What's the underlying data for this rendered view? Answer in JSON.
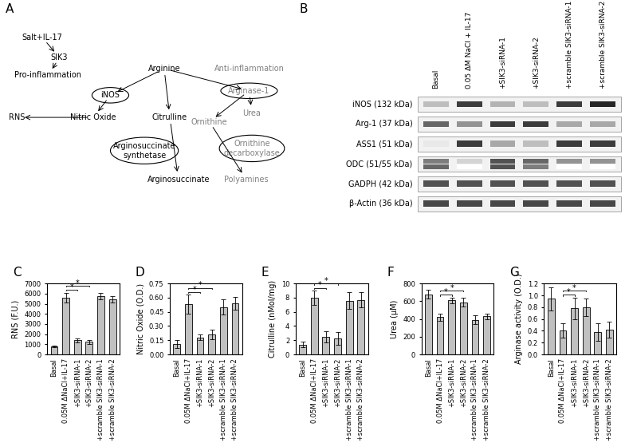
{
  "diagram": {
    "panel_label": "A",
    "nodes": [
      {
        "text": "Salt+IL-17",
        "color": "#000000",
        "shape": "text"
      },
      {
        "text": "SIK3",
        "color": "#000000",
        "shape": "text"
      },
      {
        "text": "Pro-inflammation",
        "color": "#000000",
        "shape": "text"
      },
      {
        "text": "iNOS",
        "color": "#000000",
        "shape": "ellipse"
      },
      {
        "text": "Arginine",
        "color": "#000000",
        "shape": "text"
      },
      {
        "text": "Anti-inflammation",
        "color": "#808080",
        "shape": "text"
      },
      {
        "text": "Arginase-1",
        "color": "#808080",
        "shape": "ellipse"
      },
      {
        "text": "Urea",
        "color": "#808080",
        "shape": "text"
      },
      {
        "text": "RNS",
        "color": "#000000",
        "shape": "text"
      },
      {
        "text": "Nitric Oxide",
        "color": "#000000",
        "shape": "text"
      },
      {
        "text": "Citrulline",
        "color": "#000000",
        "shape": "text"
      },
      {
        "text": "Ornithine",
        "color": "#808080",
        "shape": "text"
      },
      {
        "text": "Arginosuccinate\nsynthetase",
        "color": "#000000",
        "shape": "ellipse"
      },
      {
        "text": "Ornithine\ndecarboxylase",
        "color": "#808080",
        "shape": "ellipse"
      },
      {
        "text": "Arginosuccinate",
        "color": "#000000",
        "shape": "text"
      },
      {
        "text": "Polyamines",
        "color": "#808080",
        "shape": "text"
      }
    ]
  },
  "blot": {
    "panel_label": "B",
    "lanes": [
      "Basal",
      "0.05 ΔM NaCl + IL-17",
      "+SIK3-siRNA-1",
      "+SIK3-siRNA-2",
      "+scramble SIK3-siRNA-1",
      "+scramble SIK3-siRNA-2"
    ],
    "rows": [
      {
        "label": "iNOS (132 kDa)",
        "intensity": [
          0.3,
          0.9,
          0.35,
          0.3,
          0.9,
          1.0
        ]
      },
      {
        "label": "Arg-1 (37 kDa)",
        "intensity": [
          0.7,
          0.5,
          0.9,
          0.9,
          0.4,
          0.4
        ]
      },
      {
        "label": "ASS1 (51 kDa)",
        "intensity": [
          0.1,
          0.9,
          0.4,
          0.3,
          0.9,
          0.9
        ]
      },
      {
        "label": "ODC (51/55 kDa)",
        "intensity": [
          0.6,
          0.2,
          0.8,
          0.7,
          0.5,
          0.5
        ],
        "second_band": [
          0.7,
          0.0,
          0.8,
          0.6,
          0.0,
          0.0
        ]
      },
      {
        "label": "GADPH (42 kDa)",
        "intensity": [
          0.8,
          0.8,
          0.8,
          0.8,
          0.8,
          0.8
        ]
      },
      {
        "label": "β-Actin (36 kDa)",
        "intensity": [
          0.85,
          0.85,
          0.85,
          0.85,
          0.85,
          0.85
        ]
      }
    ]
  },
  "chart_data": [
    {
      "type": "bar",
      "panel_label": "C",
      "y_label": "RNS (F.U.)",
      "color": "#c0c0c0",
      "categories": [
        "Basal",
        "0.05M ΔNaCl+IL-17",
        "+SIK3-siRNA-1",
        "+SIK3-siRNA-2",
        "+scramble SIK3-siRNA-1",
        "+scramble SIK3-siRNA-2"
      ],
      "values": [
        800,
        5600,
        1400,
        1250,
        5750,
        5450
      ],
      "errors": [
        100,
        500,
        200,
        200,
        300,
        300
      ],
      "ylim": [
        0,
        7000
      ],
      "yticks": [
        0,
        1000,
        2000,
        3000,
        4000,
        5000,
        6000,
        7000
      ],
      "significance": [
        {
          "text": "*",
          "between": [
            1,
            2
          ]
        },
        {
          "text": "*",
          "between": [
            1,
            3
          ]
        }
      ]
    },
    {
      "type": "bar",
      "panel_label": "D",
      "y_label": "Nitric Oxide (O.D.)",
      "color": "#c0c0c0",
      "categories": [
        "Basal",
        "0.05M ΔNaCl+IL-17",
        "+SIK3-siRNA-1",
        "+SIK3-siRNA-2",
        "+scramble SIK3-siRNA-1",
        "+scramble SIK3-siRNA-2"
      ],
      "values": [
        0.11,
        0.53,
        0.18,
        0.21,
        0.5,
        0.54
      ],
      "errors": [
        0.04,
        0.1,
        0.03,
        0.05,
        0.08,
        0.07
      ],
      "ylim": [
        0,
        0.75
      ],
      "yticks": [
        {
          "value": 0,
          "label": "0.00"
        },
        {
          "value": 0.15,
          "label": "0.15"
        },
        {
          "value": 0.3,
          "label": "0.30"
        },
        {
          "value": 0.45,
          "label": "0.45"
        },
        {
          "value": 0.6,
          "label": "0.60"
        },
        {
          "value": 0.75,
          "label": "0.75"
        }
      ],
      "significance": [
        {
          "text": "*",
          "between": [
            1,
            2
          ]
        },
        {
          "text": "*",
          "between": [
            1,
            3
          ]
        }
      ]
    },
    {
      "type": "bar",
      "panel_label": "E",
      "y_label": "Citrulline (nMol/mg)",
      "color": "#c0c0c0",
      "categories": [
        "Basal",
        "0.05M ΔNaCl+IL-17",
        "+SIK3-siRNA-1",
        "+SIK3-siRNA-2",
        "+scramble SIK3-siRNA-1",
        "+scramble SIK3-siRNA-2"
      ],
      "values": [
        1.4,
        8.0,
        2.5,
        2.3,
        7.6,
        7.7
      ],
      "errors": [
        0.4,
        1.0,
        0.8,
        0.9,
        1.2,
        1.1
      ],
      "ylim": [
        0,
        10
      ],
      "yticks": [
        0,
        2,
        4,
        6,
        8,
        10
      ],
      "significance": [
        {
          "text": "*",
          "between": [
            1,
            2
          ]
        },
        {
          "text": "*",
          "between": [
            1,
            3
          ]
        }
      ]
    },
    {
      "type": "bar",
      "panel_label": "F",
      "y_label": "Urea (μM)",
      "color": "#c0c0c0",
      "categories": [
        "Basal",
        "0.05M ΔNaCl+IL-17",
        "+SIK3-siRNA-1",
        "+SIK3-siRNA-2",
        "+scramble SIK3-siRNA-1",
        "+scramble SIK3-siRNA-2"
      ],
      "values": [
        680,
        420,
        610,
        590,
        390,
        430
      ],
      "errors": [
        50,
        40,
        30,
        50,
        50,
        30
      ],
      "ylim": [
        0,
        800
      ],
      "yticks": [
        0,
        200,
        400,
        600,
        800
      ],
      "significance": [
        {
          "text": "*",
          "between": [
            1,
            2
          ]
        },
        {
          "text": "*",
          "between": [
            1,
            3
          ]
        }
      ]
    },
    {
      "type": "bar",
      "panel_label": "G",
      "y_label": "Arginase activity (O.D.)",
      "color": "#c0c0c0",
      "categories": [
        "Basal",
        "0.05M ΔNaCl+IL-17",
        "+SIK3-siRNA-1",
        "+SIK3-siRNA-2",
        "+scramble SIK3-siRNA-1",
        "+scramble SIK3-siRNA-2"
      ],
      "values": [
        0.94,
        0.41,
        0.78,
        0.8,
        0.38,
        0.42
      ],
      "errors": [
        0.2,
        0.12,
        0.18,
        0.15,
        0.15,
        0.14
      ],
      "ylim": [
        0.0,
        1.2
      ],
      "yticks": [
        0.0,
        0.2,
        0.4,
        0.6,
        0.8,
        1.0,
        1.2
      ],
      "significance": [
        {
          "text": "*",
          "between": [
            1,
            2
          ]
        },
        {
          "text": "*",
          "between": [
            1,
            3
          ]
        }
      ]
    }
  ]
}
